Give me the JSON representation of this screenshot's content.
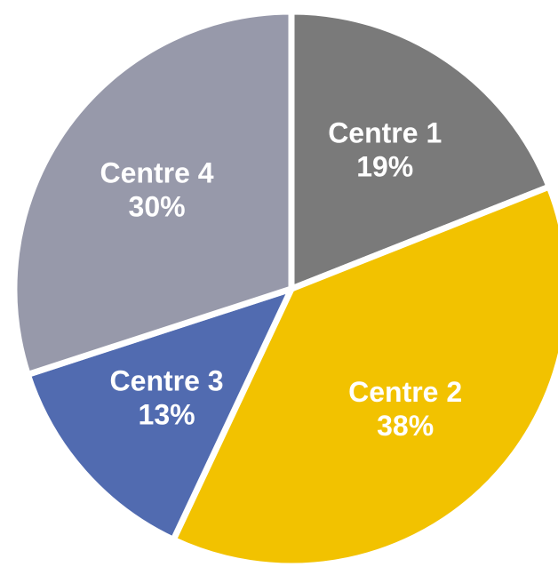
{
  "chart_data": {
    "type": "pie",
    "categories": [
      "Centre 1",
      "Centre 2",
      "Centre 3",
      "Centre 4"
    ],
    "values": [
      19,
      38,
      13,
      30
    ],
    "value_labels": [
      "19%",
      "38%",
      "13%",
      "30%"
    ],
    "colors": [
      "#7a7a7a",
      "#f2c200",
      "#516bb0",
      "#9799aa"
    ]
  }
}
